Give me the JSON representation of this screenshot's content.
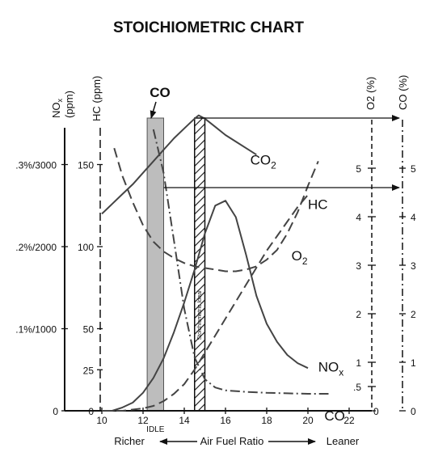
{
  "chart_data": {
    "type": "line",
    "title": "STOICHIOMETRIC CHART",
    "xlabel": "Air Fuel Ratio",
    "x_left_label": "Richer",
    "x_right_label": "Leaner",
    "x_ticks": [
      "10",
      "12",
      "14",
      "16",
      "18",
      "20",
      "22"
    ],
    "xlim": [
      10,
      22
    ],
    "idle_label": "IDLE",
    "co_callout": "CO",
    "stoich_label": "Stoichiometric Ideal",
    "nox_axis": {
      "label_main": "NO",
      "label_sub": "x",
      "label_unit": "(ppm)",
      "ticks": [
        {
          "v": 0,
          "label": "0"
        },
        {
          "v": 50,
          "label": ".1%/1000"
        },
        {
          "v": 100,
          "label": ".2%/2000"
        },
        {
          "v": 150,
          "label": ".3%/3000"
        }
      ]
    },
    "hc_axis": {
      "label": "HC (ppm)",
      "ticks": [
        {
          "v": 0,
          "label": "0"
        },
        {
          "v": 25,
          "label": "25"
        },
        {
          "v": 50,
          "label": "50"
        },
        {
          "v": 100,
          "label": "100"
        },
        {
          "v": 150,
          "label": "150"
        }
      ]
    },
    "o2_axis": {
      "label": "O2 (%)",
      "ticks": [
        {
          "v": 0,
          "label": "0"
        },
        {
          "v": 0.5,
          "label": ".5"
        },
        {
          "v": 1,
          "label": "1"
        },
        {
          "v": 2,
          "label": "2"
        },
        {
          "v": 3,
          "label": "3"
        },
        {
          "v": 4,
          "label": "4"
        },
        {
          "v": 5,
          "label": "5"
        }
      ]
    },
    "co_axis": {
      "label": "CO (%)",
      "ticks": [
        {
          "v": 0,
          "label": "0"
        },
        {
          "v": 1,
          "label": "1"
        },
        {
          "v": 2,
          "label": "2"
        },
        {
          "v": 3,
          "label": "3"
        },
        {
          "v": 4,
          "label": "4"
        },
        {
          "v": 5,
          "label": "5"
        }
      ]
    },
    "ylim_left": [
      0,
      175
    ],
    "idle_band": [
      12.2,
      13.0
    ],
    "stoich_band": [
      14.5,
      15.0
    ],
    "series": [
      {
        "name": "CO",
        "name_sub": "2",
        "style": "solid",
        "x": [
          10,
          10.5,
          11,
          11.5,
          12,
          12.5,
          13,
          13.5,
          14,
          14.5,
          14.7,
          15,
          15.5,
          16,
          16.5,
          17,
          17.5
        ],
        "y": [
          120,
          126,
          132,
          138,
          145,
          152,
          159,
          166,
          172,
          178,
          180,
          178,
          173,
          168,
          164,
          160,
          156
        ]
      },
      {
        "name": "HC",
        "style": "dashed",
        "x": [
          10.6,
          11,
          11.5,
          12,
          12.5,
          13,
          13.5,
          14,
          14.5,
          15,
          15.5,
          16,
          16.5,
          17,
          17.5,
          18,
          18.5,
          19,
          19.5,
          20,
          20.5
        ],
        "y": [
          160,
          143,
          127,
          113,
          103,
          97,
          93,
          90,
          88,
          87,
          86,
          85,
          85,
          86,
          88,
          92,
          98,
          108,
          121,
          137,
          152
        ]
      },
      {
        "name": "NO",
        "name_sub": "x",
        "style": "solid",
        "x": [
          10,
          10.5,
          11,
          11.5,
          12,
          12.5,
          13,
          13.5,
          14,
          14.5,
          15,
          15.5,
          16,
          16.5,
          17,
          17.5,
          18,
          18.5,
          19,
          19.5,
          20
        ],
        "y": [
          0,
          0,
          2,
          5,
          11,
          20,
          32,
          48,
          66,
          86,
          108,
          125,
          128,
          118,
          95,
          70,
          53,
          42,
          34,
          29,
          26
        ]
      },
      {
        "name": "O",
        "name_sub": "2",
        "style": "dashed",
        "x": [
          10,
          11,
          12,
          12.5,
          13,
          13.5,
          14,
          14.5,
          15,
          15.5,
          16,
          16.5,
          17,
          17.5,
          18,
          18.5,
          19,
          19.5,
          20
        ],
        "y": [
          0,
          0,
          0.05,
          0.1,
          0.2,
          0.35,
          0.55,
          0.85,
          1.2,
          1.55,
          1.9,
          2.25,
          2.6,
          2.95,
          3.3,
          3.6,
          3.9,
          4.2,
          4.45
        ]
      },
      {
        "name": "CO",
        "style": "dash-dot",
        "x": [
          12.5,
          13,
          13.5,
          14,
          14.5,
          15,
          15.5,
          16,
          17,
          18,
          19,
          20,
          21
        ],
        "y": [
          5.8,
          4.9,
          3.5,
          2.1,
          1.1,
          0.65,
          0.48,
          0.42,
          0.39,
          0.37,
          0.36,
          0.35,
          0.35
        ]
      }
    ],
    "reference_arrows": [
      {
        "x_from": 14.8,
        "to_axis": "CO (%)",
        "value": 6
      },
      {
        "x_from": 13.0,
        "to_axis": "CO (%)",
        "value": 4.6
      }
    ]
  }
}
